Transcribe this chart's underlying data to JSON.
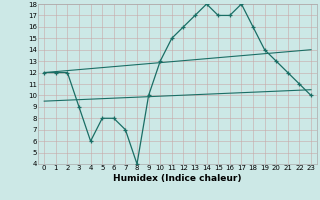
{
  "xlabel": "Humidex (Indice chaleur)",
  "background_color": "#cce8e6",
  "line_color": "#1a6e65",
  "x_ticks": [
    0,
    1,
    2,
    3,
    4,
    5,
    6,
    7,
    8,
    9,
    10,
    11,
    12,
    13,
    14,
    15,
    16,
    17,
    18,
    19,
    20,
    21,
    22,
    23
  ],
  "ylim": [
    4,
    18
  ],
  "yticks": [
    4,
    5,
    6,
    7,
    8,
    9,
    10,
    11,
    12,
    13,
    14,
    15,
    16,
    17,
    18
  ],
  "curve1_x": [
    0,
    1,
    2,
    3,
    4,
    5,
    6,
    7,
    8,
    9,
    10,
    11,
    12,
    13,
    14,
    15,
    16,
    17,
    18,
    19,
    20,
    21,
    22,
    23
  ],
  "curve1_y": [
    12,
    12,
    12,
    9,
    6,
    8,
    8,
    7,
    4,
    10,
    13,
    15,
    16,
    17,
    18,
    17,
    17,
    18,
    16,
    14,
    13,
    12,
    11,
    10
  ],
  "curve2_x": [
    0,
    23
  ],
  "curve2_y": [
    12,
    14
  ],
  "curve3_x": [
    0,
    23
  ],
  "curve3_y": [
    9.5,
    10.5
  ],
  "tick_fontsize": 5,
  "xlabel_fontsize": 6.5
}
